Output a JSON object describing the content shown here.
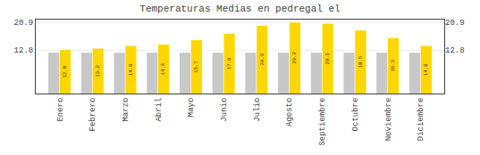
{
  "chart_data": {
    "type": "bar",
    "title": "Temperaturas Medias en pedregal el",
    "categories": [
      "Enero",
      "Febrero",
      "Marzo",
      "Abril",
      "Mayo",
      "Junio",
      "Julio",
      "Agosto",
      "Septiembre",
      "Octubre",
      "Noviembre",
      "Diciembre"
    ],
    "series": [
      {
        "color": "#C8C8C8",
        "values": [
          12.0,
          12.0,
          12.0,
          12.0,
          12.0,
          12.0,
          12.0,
          12.0,
          12.0,
          12.0,
          12.0,
          12.0
        ]
      },
      {
        "color": "#FFD700",
        "values": [
          12.8,
          13.2,
          14.0,
          14.4,
          15.7,
          17.6,
          20.0,
          20.9,
          20.5,
          18.5,
          16.3,
          14.0
        ],
        "data_labels": true,
        "value_labels": [
          "12.8",
          "13.2",
          "14.0",
          "14.4",
          "15.7",
          "17.6",
          "20.0",
          "20.9",
          "20.5",
          "18.5",
          "16.3",
          "14.0"
        ]
      }
    ],
    "ylim": [
      0,
      21.736
    ],
    "yticks": [
      12.8,
      20.9
    ],
    "y2lim": [
      0,
      21.736
    ],
    "y2ticks": [
      12.8,
      20.9
    ],
    "grid": true
  }
}
